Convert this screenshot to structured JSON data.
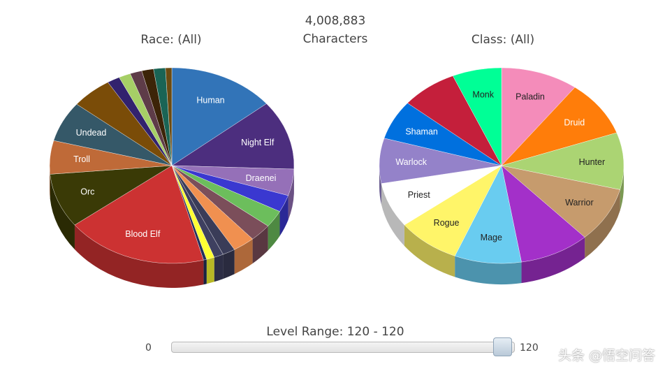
{
  "header": {
    "total_count": "4,008,883",
    "total_label": "Characters"
  },
  "chart_data": [
    {
      "type": "pie",
      "title": "Race: (All)",
      "style": "3d",
      "slices": [
        {
          "label": "Human",
          "value": 13.5,
          "color": "#3274b8"
        },
        {
          "label": "Night Elf",
          "value": 11.0,
          "color": "#4c2e7e"
        },
        {
          "label": "Draenei",
          "value": 4.2,
          "color": "#9570b8"
        },
        {
          "label": "",
          "value": 2.7,
          "color": "#3a38d0"
        },
        {
          "label": "",
          "value": 2.7,
          "color": "#6cbe5c"
        },
        {
          "label": "",
          "value": 2.8,
          "color": "#7b4e5a"
        },
        {
          "label": "",
          "value": 2.8,
          "color": "#f09050"
        },
        {
          "label": "",
          "value": 1.6,
          "color": "#3a3c58"
        },
        {
          "label": "",
          "value": 1.2,
          "color": "#3e4060"
        },
        {
          "label": "",
          "value": 1.0,
          "color": "#ffff33"
        },
        {
          "label": "",
          "value": 0.4,
          "color": "#23305a"
        },
        {
          "label": "Blood Elf",
          "value": 18.0,
          "color": "#cc3232"
        },
        {
          "label": "Orc",
          "value": 8.6,
          "color": "#3a3a06"
        },
        {
          "label": "Troll",
          "value": 5.3,
          "color": "#bf6a38"
        },
        {
          "label": "Undead",
          "value": 6.4,
          "color": "#355868"
        },
        {
          "label": "",
          "value": 5.2,
          "color": "#7a4c08"
        },
        {
          "label": "",
          "value": 1.6,
          "color": "#32226e"
        },
        {
          "label": "",
          "value": 1.5,
          "color": "#a6cf66"
        },
        {
          "label": "",
          "value": 1.5,
          "color": "#5e3c48"
        },
        {
          "label": "",
          "value": 1.5,
          "color": "#3c2408"
        },
        {
          "label": "",
          "value": 1.5,
          "color": "#1a6455"
        },
        {
          "label": "",
          "value": 0.8,
          "color": "#6b4a10"
        }
      ]
    },
    {
      "type": "pie",
      "title": "Class: (All)",
      "style": "3d",
      "slices": [
        {
          "label": "Paladin",
          "value": 11.0,
          "color": "#f48cba"
        },
        {
          "label": "Druid",
          "value": 10.0,
          "color": "#ff7d0a"
        },
        {
          "label": "Hunter",
          "value": 10.1,
          "color": "#abd473"
        },
        {
          "label": "Warrior",
          "value": 9.8,
          "color": "#c69b6d"
        },
        {
          "label": "",
          "value": 10.0,
          "color": "#a330c9"
        },
        {
          "label": "Mage",
          "value": 9.5,
          "color": "#69ccf0"
        },
        {
          "label": "Rogue",
          "value": 9.0,
          "color": "#fff569"
        },
        {
          "label": "Priest",
          "value": 8.0,
          "color": "#ffffff"
        },
        {
          "label": "Warlock",
          "value": 8.0,
          "color": "#9482c9"
        },
        {
          "label": "Shaman",
          "value": 7.0,
          "color": "#0070de"
        },
        {
          "label": "",
          "value": 8.0,
          "color": "#c41f3b"
        },
        {
          "label": "Monk",
          "value": 7.0,
          "color": "#00ff96"
        }
      ]
    }
  ],
  "slider": {
    "title": "Level Range: 120 - 120",
    "min_label": "0",
    "max_label": "120",
    "value": 120,
    "max": 120
  },
  "watermark": "头条 @悟空问答"
}
